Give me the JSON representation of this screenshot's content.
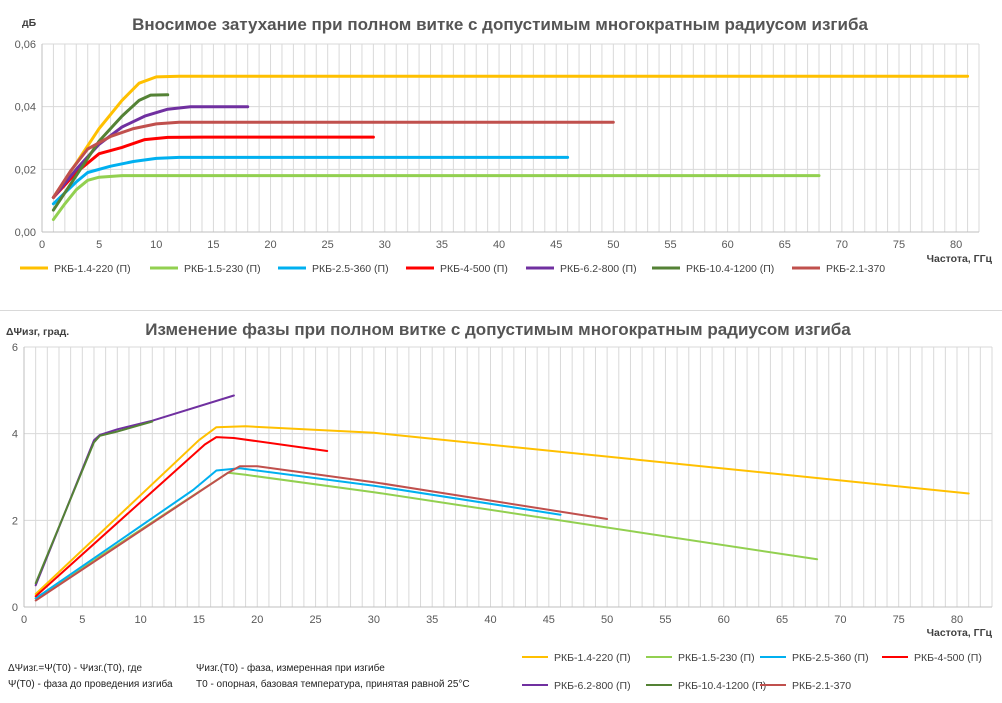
{
  "chart_data": [
    {
      "type": "line",
      "title": "Вносимое затухание при полном витке с допустимым многократным радиусом изгиба",
      "ylabel": "дБ",
      "xlabel": "Частота,  ГГц",
      "xlim": [
        0,
        82
      ],
      "ylim": [
        0,
        0.06
      ],
      "xticks": [
        0,
        5,
        10,
        15,
        20,
        25,
        30,
        35,
        40,
        45,
        50,
        55,
        60,
        65,
        70,
        75,
        80
      ],
      "yticks": [
        0,
        0.02,
        0.04,
        0.06
      ],
      "ytick_labels": [
        "0,00",
        "0,02",
        "0,04",
        "0,06"
      ],
      "x_gridlines_every": 1,
      "series": [
        {
          "name": "РКБ-1.4-220 (П)",
          "color": "#FFC000",
          "points": [
            [
              1,
              0.011
            ],
            [
              3,
              0.022
            ],
            [
              5,
              0.033
            ],
            [
              7,
              0.042
            ],
            [
              8.5,
              0.0475
            ],
            [
              10,
              0.0495
            ],
            [
              12,
              0.0497
            ],
            [
              40,
              0.0497
            ],
            [
              81,
              0.0497
            ]
          ]
        },
        {
          "name": "РКБ-1.5-230 (П)",
          "color": "#92D050",
          "points": [
            [
              1,
              0.004
            ],
            [
              2,
              0.009
            ],
            [
              3,
              0.0135
            ],
            [
              4,
              0.0165
            ],
            [
              5,
              0.0175
            ],
            [
              7,
              0.018
            ],
            [
              10,
              0.018
            ],
            [
              68,
              0.018
            ]
          ]
        },
        {
          "name": "РКБ-2.5-360 (П)",
          "color": "#00B0F0",
          "points": [
            [
              1,
              0.009
            ],
            [
              2,
              0.0125
            ],
            [
              3,
              0.016
            ],
            [
              4,
              0.019
            ],
            [
              6,
              0.021
            ],
            [
              8,
              0.0225
            ],
            [
              10,
              0.0235
            ],
            [
              12,
              0.0238
            ],
            [
              46,
              0.0238
            ]
          ]
        },
        {
          "name": "РКБ-4-500 (П)",
          "color": "#FF0000",
          "points": [
            [
              1,
              0.011
            ],
            [
              3,
              0.019
            ],
            [
              5,
              0.025
            ],
            [
              7,
              0.027
            ],
            [
              9,
              0.0295
            ],
            [
              11,
              0.0302
            ],
            [
              14,
              0.0303
            ],
            [
              29,
              0.0303
            ]
          ]
        },
        {
          "name": "РКБ-6.2-800 (П)",
          "color": "#7030A0",
          "points": [
            [
              1,
              0.011
            ],
            [
              3,
              0.02
            ],
            [
              5,
              0.028
            ],
            [
              7,
              0.0335
            ],
            [
              9,
              0.037
            ],
            [
              11,
              0.0392
            ],
            [
              13,
              0.04
            ],
            [
              18,
              0.04
            ]
          ]
        },
        {
          "name": "РКБ-10.4-1200 (П)",
          "color": "#548235",
          "points": [
            [
              1,
              0.007
            ],
            [
              3,
              0.018
            ],
            [
              5,
              0.029
            ],
            [
              7,
              0.037
            ],
            [
              8.5,
              0.042
            ],
            [
              9.5,
              0.0437
            ],
            [
              11,
              0.0438
            ]
          ]
        },
        {
          "name": "РКБ-2.1-370",
          "color": "#C0504D",
          "points": [
            [
              1,
              0.011
            ],
            [
              2.5,
              0.0195
            ],
            [
              4,
              0.0265
            ],
            [
              6,
              0.0305
            ],
            [
              8,
              0.033
            ],
            [
              10,
              0.0345
            ],
            [
              12,
              0.035
            ],
            [
              50,
              0.035
            ]
          ]
        }
      ],
      "legend": {
        "position": "bottom",
        "rows": 1
      }
    },
    {
      "type": "line",
      "title": "Изменение фазы при полном витке с допустимым многократным радиусом изгиба",
      "ylabel": "ΔΨизг, град.",
      "xlabel": "Частота,  ГГц",
      "xlim": [
        0,
        83
      ],
      "ylim": [
        0,
        6
      ],
      "xticks": [
        0,
        5,
        10,
        15,
        20,
        25,
        30,
        35,
        40,
        45,
        50,
        55,
        60,
        65,
        70,
        75,
        80
      ],
      "yticks": [
        0,
        2,
        4,
        6
      ],
      "ytick_labels": [
        "0",
        "2",
        "4",
        "6"
      ],
      "x_gridlines_every": 1,
      "series": [
        {
          "name": "РКБ-1.4-220 (П)",
          "color": "#FFC000",
          "points": [
            [
              1,
              0.3
            ],
            [
              15,
              3.85
            ],
            [
              16.5,
              4.15
            ],
            [
              19,
              4.17
            ],
            [
              30,
              4.02
            ],
            [
              81,
              2.62
            ]
          ]
        },
        {
          "name": "РКБ-1.5-230 (П)",
          "color": "#92D050",
          "points": [
            [
              1,
              0.2
            ],
            [
              17.5,
              3.1
            ],
            [
              19,
              3.05
            ],
            [
              30,
              2.65
            ],
            [
              68,
              1.1
            ]
          ]
        },
        {
          "name": "РКБ-2.5-360 (П)",
          "color": "#00B0F0",
          "points": [
            [
              1,
              0.2
            ],
            [
              14.5,
              2.7
            ],
            [
              16.5,
              3.15
            ],
            [
              18.5,
              3.2
            ],
            [
              30,
              2.8
            ],
            [
              46,
              2.13
            ]
          ]
        },
        {
          "name": "РКБ-4-500 (П)",
          "color": "#FF0000",
          "points": [
            [
              1,
              0.25
            ],
            [
              15.5,
              3.75
            ],
            [
              16.5,
              3.92
            ],
            [
              18,
              3.9
            ],
            [
              26,
              3.6
            ]
          ]
        },
        {
          "name": "РКБ-6.2-800 (П)",
          "color": "#7030A0",
          "points": [
            [
              1,
              0.5
            ],
            [
              6,
              3.85
            ],
            [
              6.5,
              3.97
            ],
            [
              8,
              4.1
            ],
            [
              11,
              4.3
            ],
            [
              18,
              4.88
            ]
          ]
        },
        {
          "name": "РКБ-10.4-1200 (П)",
          "color": "#548235",
          "points": [
            [
              1,
              0.55
            ],
            [
              6,
              3.8
            ],
            [
              6.5,
              3.95
            ],
            [
              8,
              4.05
            ],
            [
              11,
              4.28
            ]
          ]
        },
        {
          "name": "РКБ-2.1-370",
          "color": "#C0504D",
          "points": [
            [
              1,
              0.15
            ],
            [
              17.5,
              3.1
            ],
            [
              18.5,
              3.25
            ],
            [
              20,
              3.25
            ],
            [
              30,
              2.88
            ],
            [
              50,
              2.03
            ]
          ]
        }
      ],
      "legend": {
        "position": "bottom-right",
        "rows": 2
      }
    }
  ],
  "notes": {
    "formula_line1": "ΔΨизг.=Ψ(T0) - Ψизг.(T0), где",
    "formula_line2": "Ψ(T0) - фаза до проведения изгиба",
    "def_line1": "Ψизг.(T0) - фаза, измеренная при изгибе",
    "def_line2": "T0 - опорная, базовая температура, принятая равной 25°С"
  }
}
